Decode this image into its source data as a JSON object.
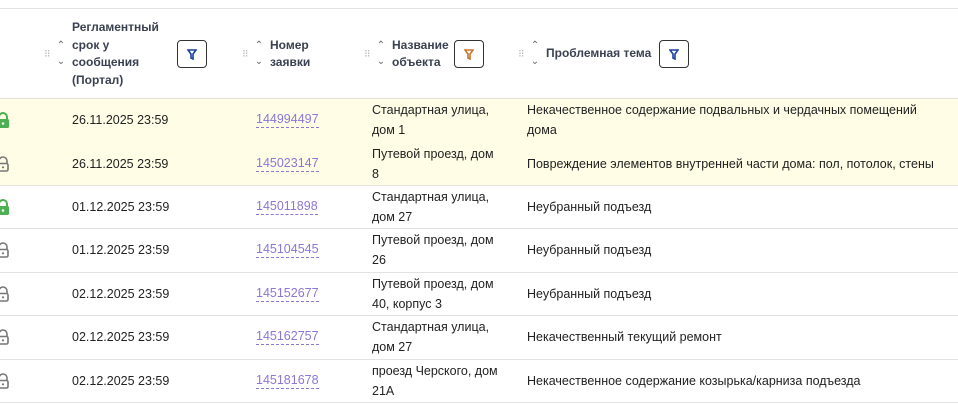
{
  "header": {
    "deadline": "Регламентный срок у сообщения (Портал)",
    "number": "Номер заявки",
    "object": "Название объекта",
    "topic": "Проблемная тема"
  },
  "colors": {
    "highlight_row": "#fffde6",
    "link": "#8a77d6",
    "lock_green": "#4caf50",
    "lock_gray": "#777777"
  },
  "rows": [
    {
      "lock": "green",
      "deadline": "26.11.2025 23:59",
      "number": "144994497",
      "object": "Стандартная улица, дом 1",
      "topic": "Некачественное содержание подвальных и чердачных помещений дома",
      "highlight": true
    },
    {
      "lock": "gray",
      "deadline": "26.11.2025 23:59",
      "number": "145023147",
      "object": "Путевой проезд, дом 8",
      "topic": "Повреждение элементов внутренней части дома: пол, потолок, стены",
      "highlight": true
    },
    {
      "lock": "green",
      "deadline": "01.12.2025 23:59",
      "number": "145011898",
      "object": "Стандартная улица, дом 27",
      "topic": "Неубранный подъезд",
      "highlight": false
    },
    {
      "lock": "gray",
      "deadline": "01.12.2025 23:59",
      "number": "145104545",
      "object": "Путевой проезд, дом 26",
      "topic": "Неубранный подъезд",
      "highlight": false
    },
    {
      "lock": "gray",
      "deadline": "02.12.2025 23:59",
      "number": "145152677",
      "object": "Путевой проезд, дом 40, корпус 3",
      "topic": "Неубранный подъезд",
      "highlight": false
    },
    {
      "lock": "gray",
      "deadline": "02.12.2025 23:59",
      "number": "145162757",
      "object": "Стандартная улица, дом 27",
      "topic": "Некачественный текущий ремонт",
      "highlight": false
    },
    {
      "lock": "gray",
      "deadline": "02.12.2025 23:59",
      "number": "145181678",
      "object": "проезд Черского, дом 21А",
      "topic": "Некачественное содержание козырька/карниза подъезда",
      "highlight": false
    }
  ]
}
